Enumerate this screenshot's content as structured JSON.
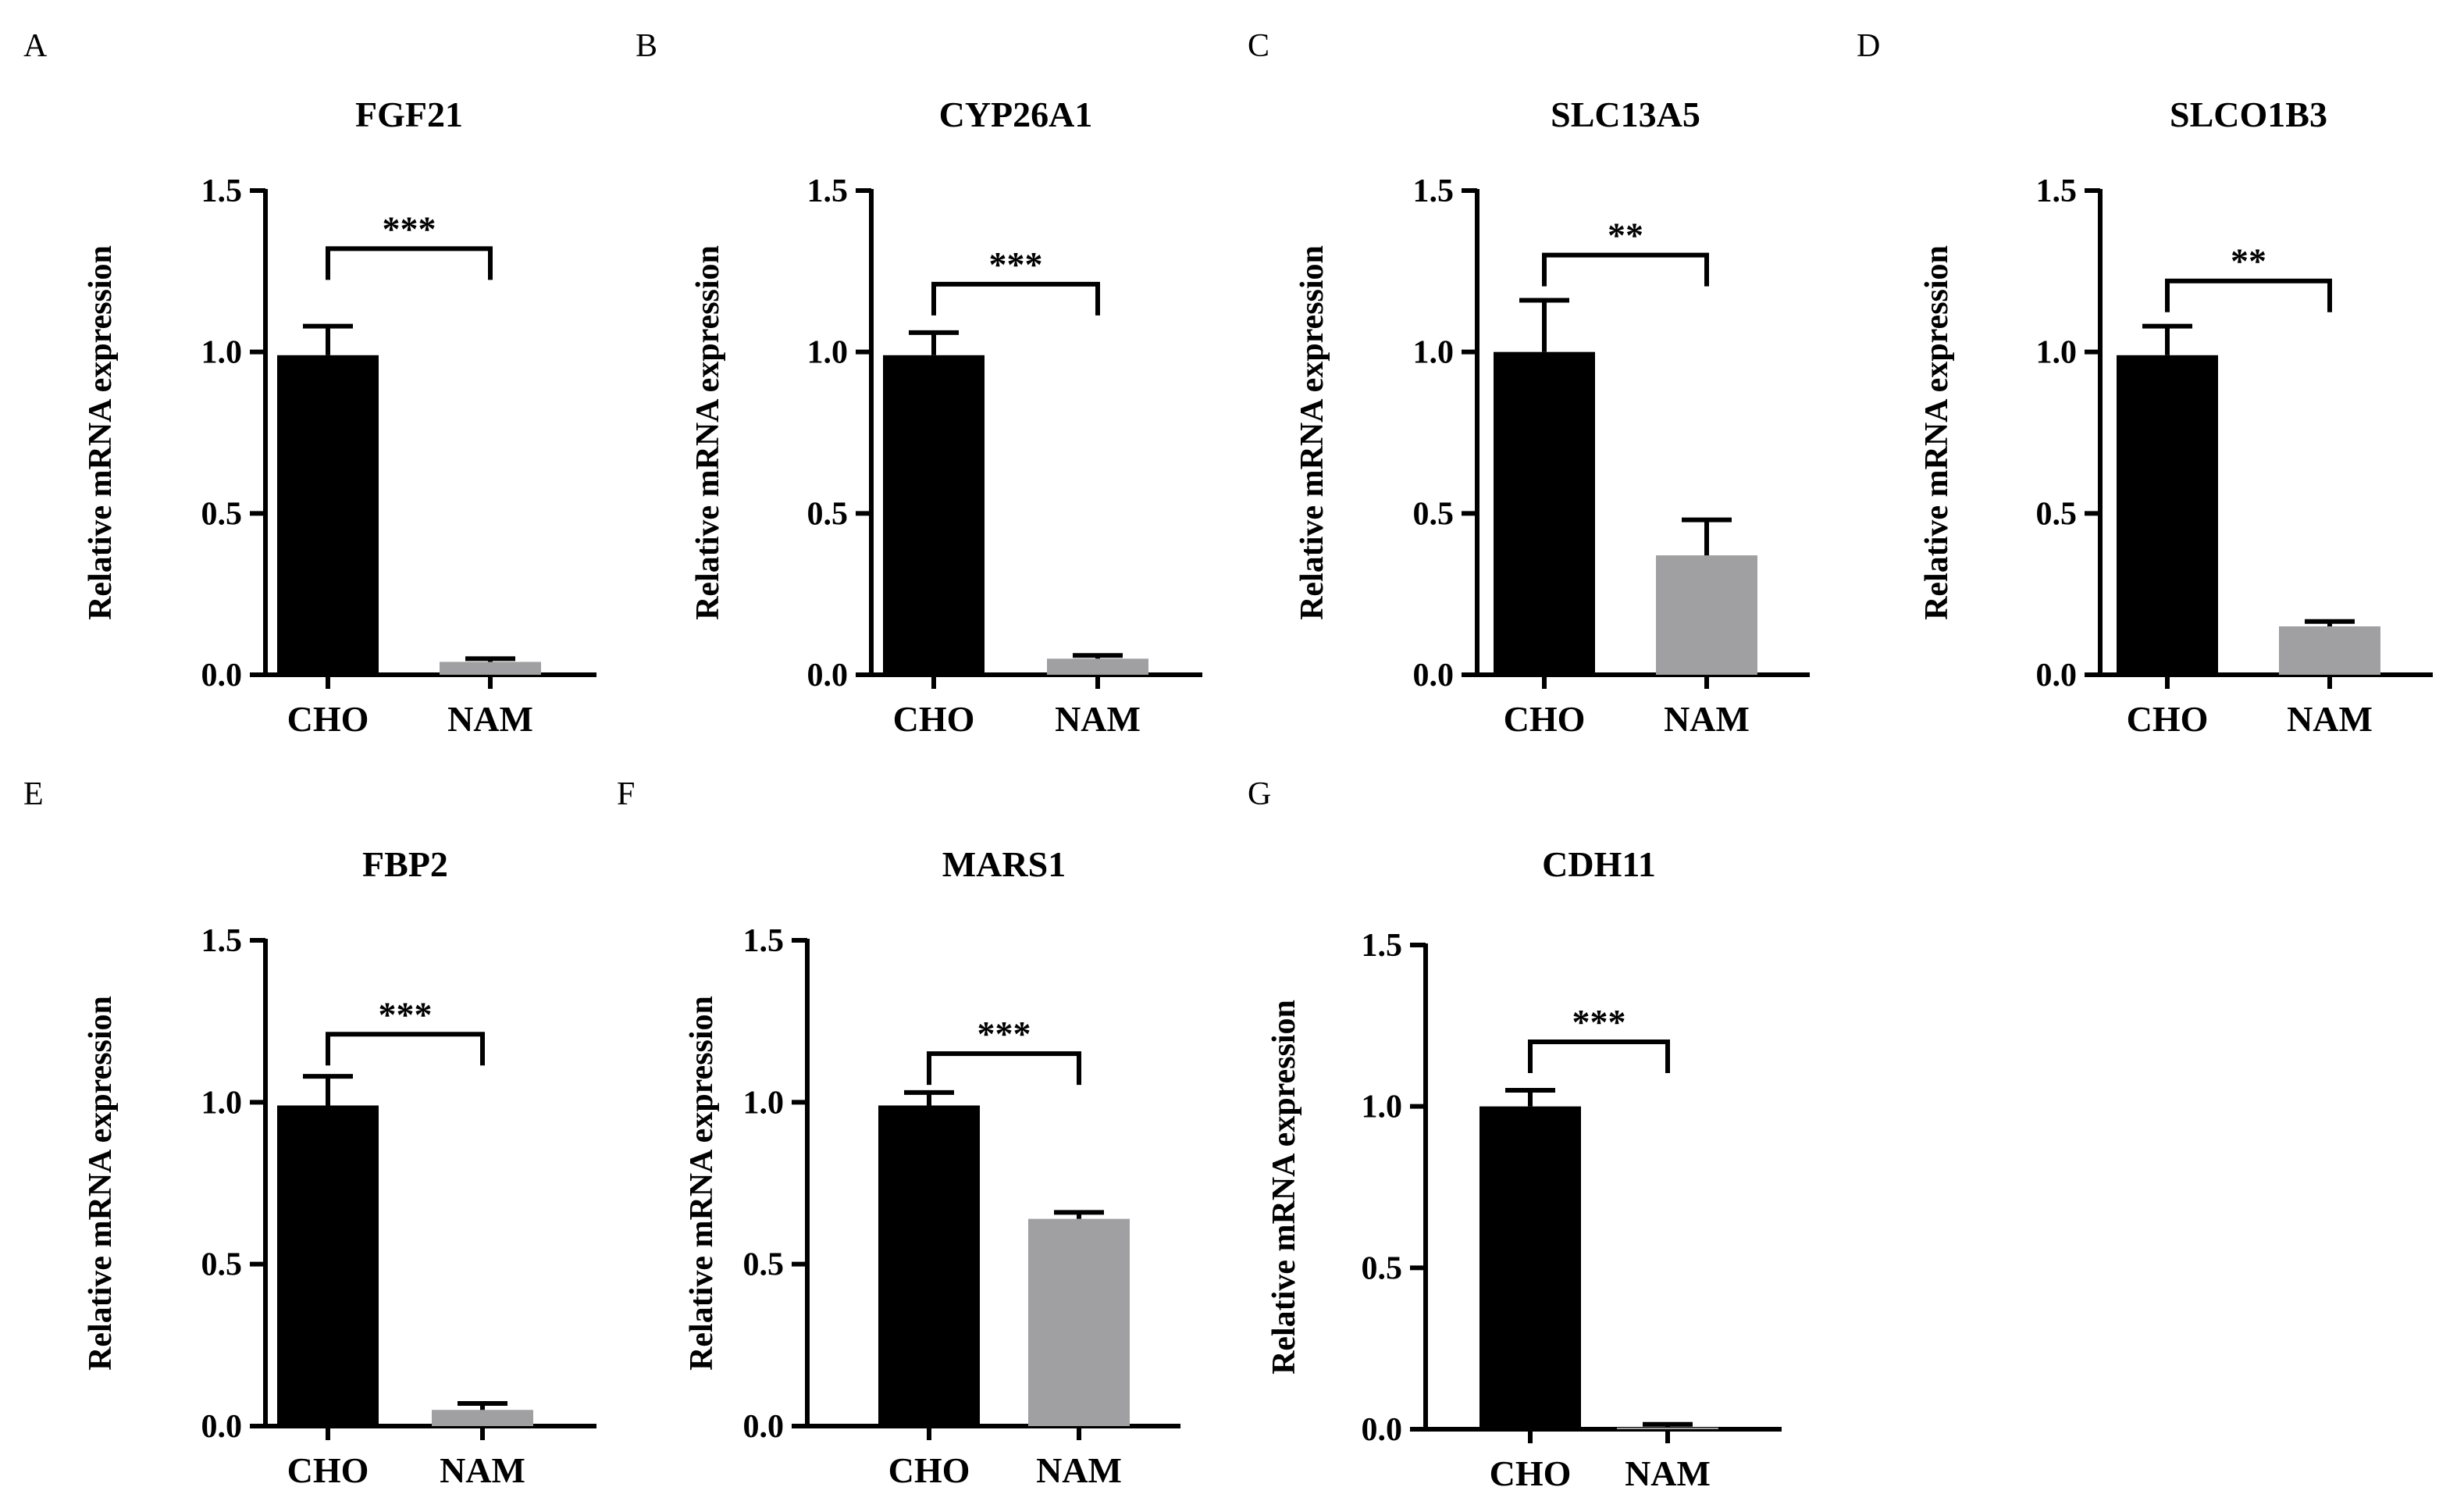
{
  "figure": {
    "panels": [
      "A",
      "B",
      "C",
      "D",
      "E",
      "F",
      "G"
    ]
  },
  "chart_data": [
    {
      "type": "bar",
      "panel": "A",
      "title": "FGF21",
      "categories": [
        "CHO",
        "NAM"
      ],
      "values": [
        0.99,
        0.04
      ],
      "errors": [
        0.09,
        0.01
      ],
      "colors": [
        "#000000",
        "#a0a0a2"
      ],
      "ylabel": "Relative mRNA expression",
      "xlabel": "",
      "ylim": [
        0,
        1.5
      ],
      "yticks": [
        "0.0",
        "0.5",
        "1.0",
        "1.5"
      ],
      "significance": "***",
      "sig_y": 1.32
    },
    {
      "type": "bar",
      "panel": "B",
      "title": "CYP26A1",
      "categories": [
        "CHO",
        "NAM"
      ],
      "values": [
        0.99,
        0.05
      ],
      "errors": [
        0.07,
        0.01
      ],
      "colors": [
        "#000000",
        "#a0a0a2"
      ],
      "ylabel": "Relative mRNA expression",
      "xlabel": "",
      "ylim": [
        0,
        1.5
      ],
      "yticks": [
        "0.0",
        "0.5",
        "1.0",
        "1.5"
      ],
      "significance": "***",
      "sig_y": 1.21
    },
    {
      "type": "bar",
      "panel": "C",
      "title": "SLC13A5",
      "categories": [
        "CHO",
        "NAM"
      ],
      "values": [
        1.0,
        0.37
      ],
      "errors": [
        0.16,
        0.11
      ],
      "colors": [
        "#000000",
        "#a0a0a2"
      ],
      "ylabel": "Relative mRNA expression",
      "xlabel": "",
      "ylim": [
        0,
        1.5
      ],
      "yticks": [
        "0.0",
        "0.5",
        "1.0",
        "1.5"
      ],
      "significance": "**",
      "sig_y": 1.3
    },
    {
      "type": "bar",
      "panel": "D",
      "title": "SLCO1B3",
      "categories": [
        "CHO",
        "NAM"
      ],
      "values": [
        0.99,
        0.15
      ],
      "errors": [
        0.09,
        0.015
      ],
      "colors": [
        "#000000",
        "#a0a0a2"
      ],
      "ylabel": "Relative mRNA expression",
      "xlabel": "",
      "ylim": [
        0,
        1.5
      ],
      "yticks": [
        "0.0",
        "0.5",
        "1.0",
        "1.5"
      ],
      "significance": "**",
      "sig_y": 1.22
    },
    {
      "type": "bar",
      "panel": "E",
      "title": "FBP2",
      "categories": [
        "CHO",
        "NAM"
      ],
      "values": [
        0.99,
        0.05
      ],
      "errors": [
        0.09,
        0.02
      ],
      "colors": [
        "#000000",
        "#a0a0a2"
      ],
      "ylabel": "Relative mRNA expression",
      "xlabel": "",
      "ylim": [
        0,
        1.5
      ],
      "yticks": [
        "0.0",
        "0.5",
        "1.0",
        "1.5"
      ],
      "significance": "***",
      "sig_y": 1.21
    },
    {
      "type": "bar",
      "panel": "F",
      "title": "MARS1",
      "categories": [
        "CHO",
        "NAM"
      ],
      "values": [
        0.99,
        0.64
      ],
      "errors": [
        0.04,
        0.02
      ],
      "colors": [
        "#000000",
        "#a0a0a2"
      ],
      "ylabel": "Relative mRNA expression",
      "xlabel": "",
      "ylim": [
        0,
        1.5
      ],
      "yticks": [
        "0.0",
        "0.5",
        "1.0",
        "1.5"
      ],
      "significance": "***",
      "sig_y": 1.15
    },
    {
      "type": "bar",
      "panel": "G",
      "title": "CDH11",
      "categories": [
        "CHO",
        "NAM"
      ],
      "values": [
        1.0,
        0.005
      ],
      "errors": [
        0.05,
        0.01
      ],
      "colors": [
        "#000000",
        "#a0a0a2"
      ],
      "ylabel": "Relative mRNA expression",
      "xlabel": "",
      "ylim": [
        0,
        1.5
      ],
      "yticks": [
        "0.0",
        "0.5",
        "1.0",
        "1.5"
      ],
      "significance": "***",
      "sig_y": 1.2
    }
  ]
}
